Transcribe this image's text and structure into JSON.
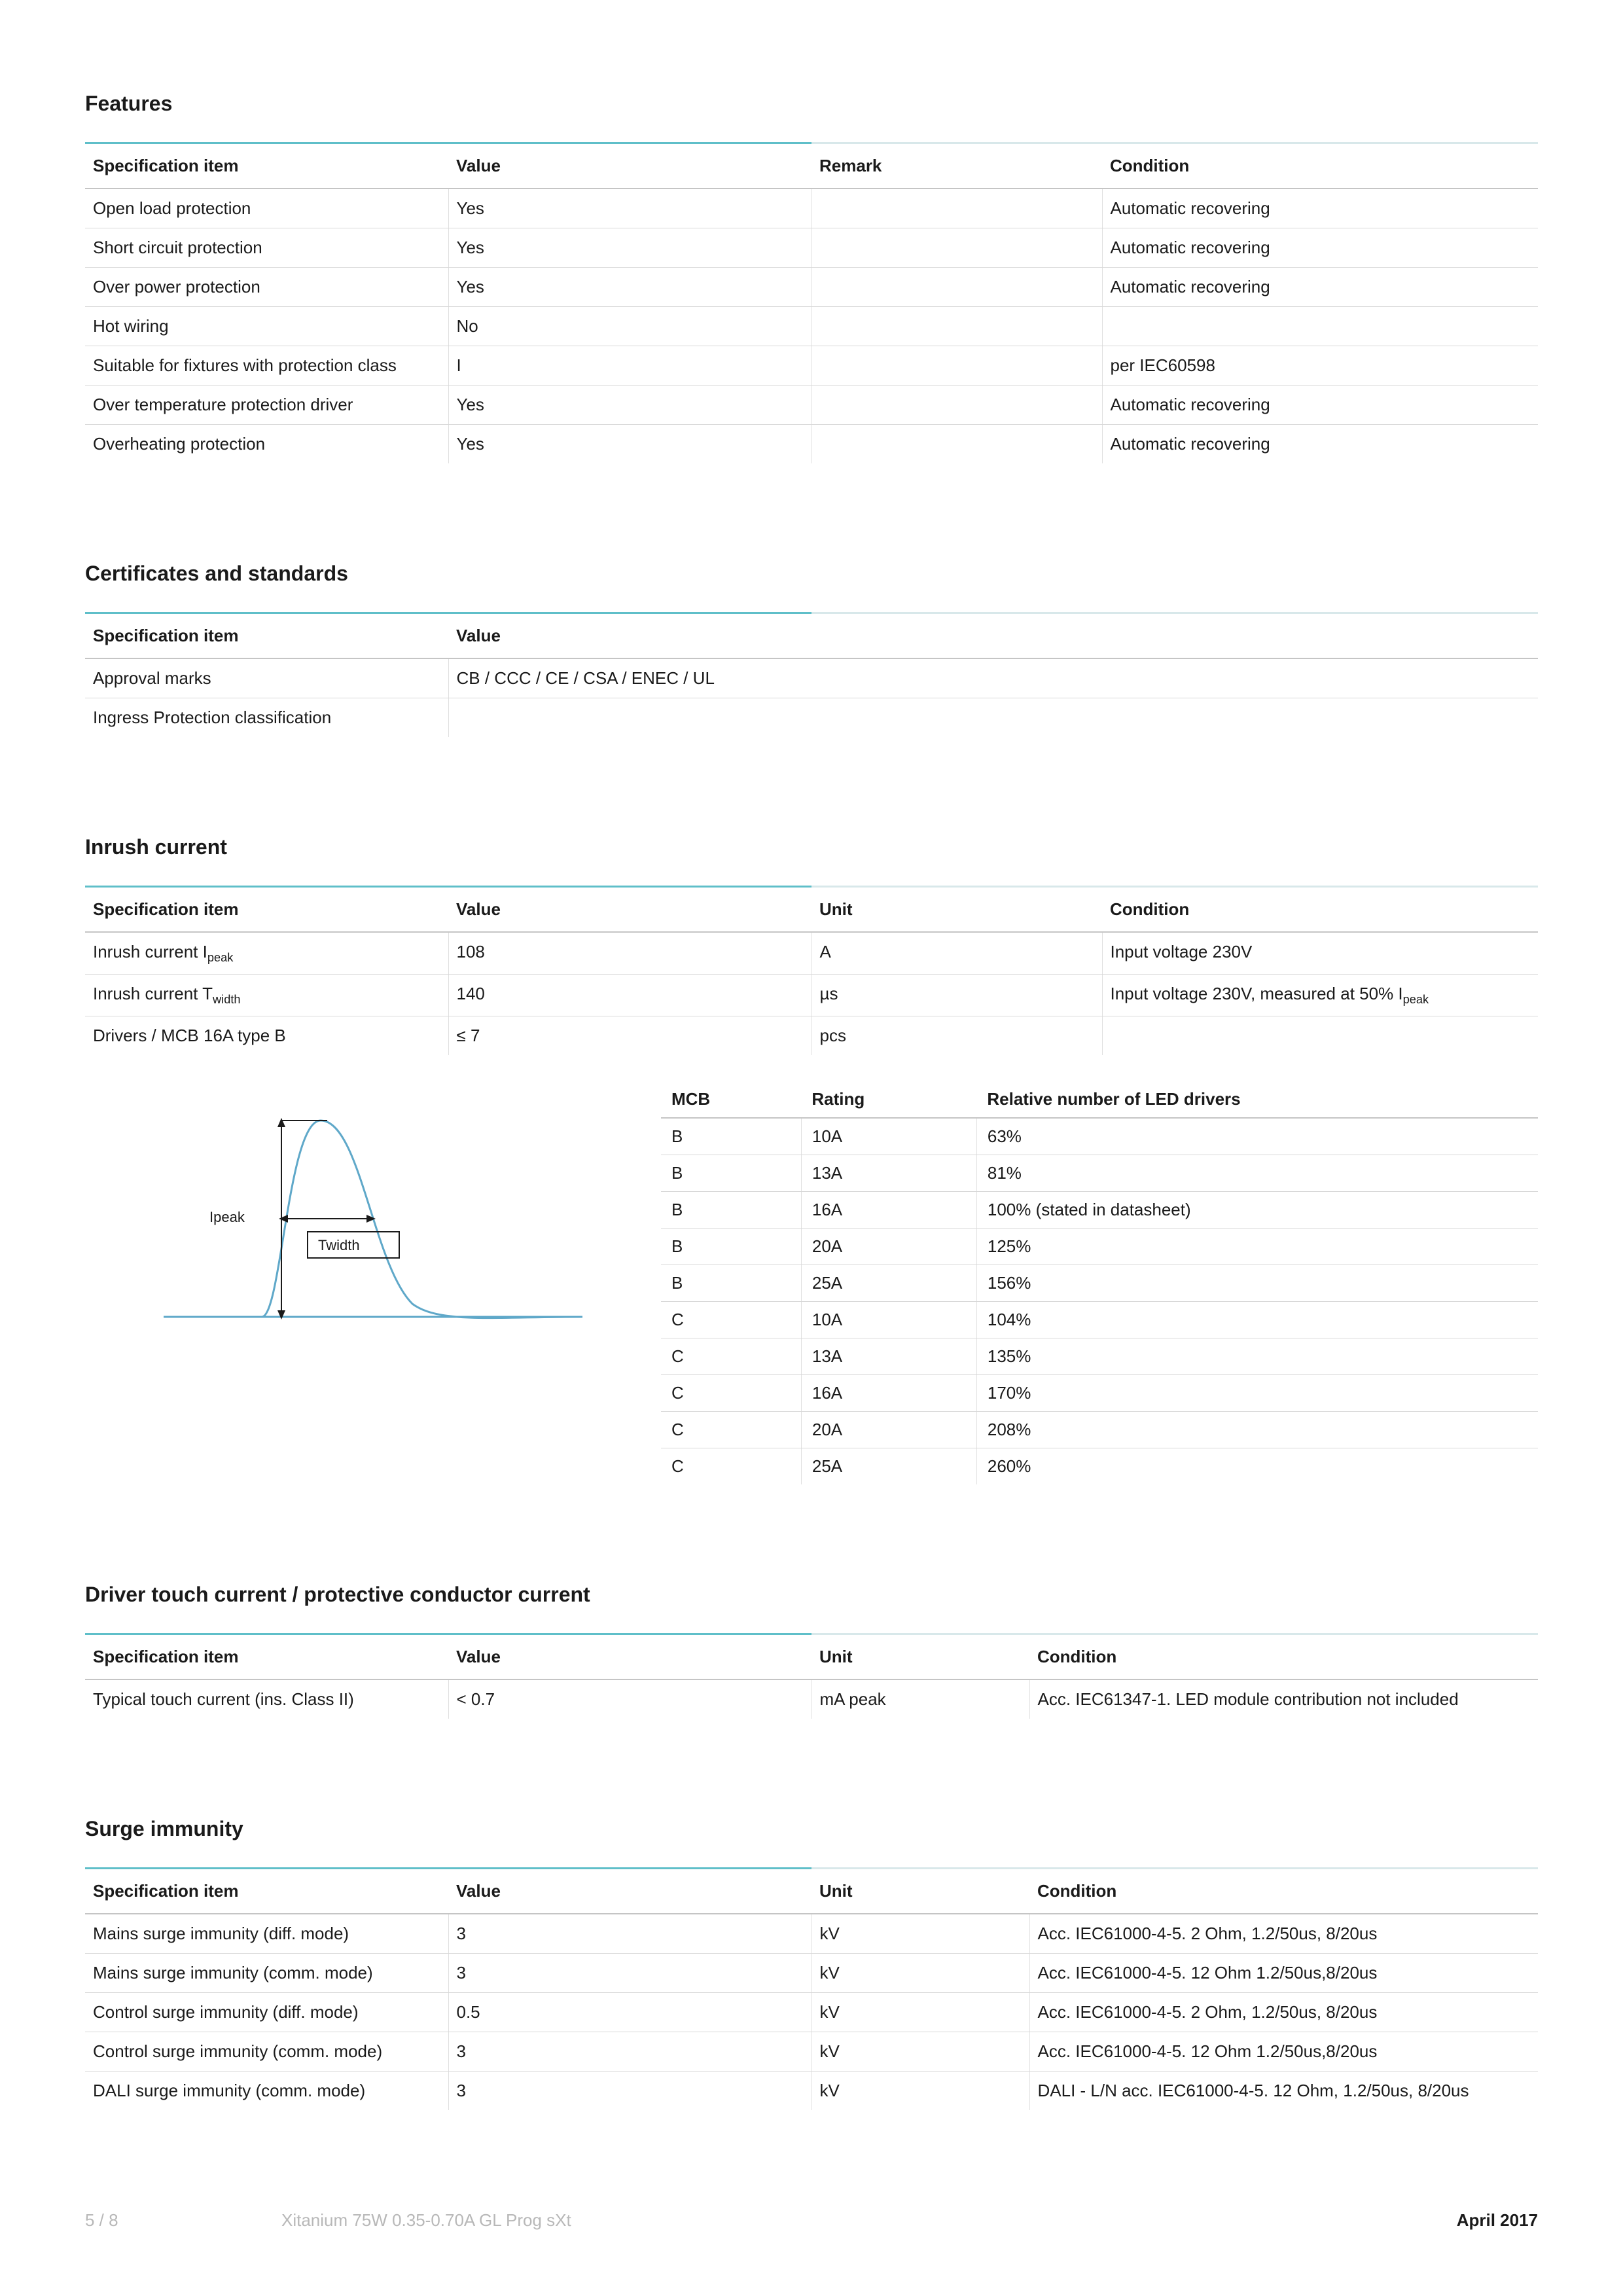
{
  "sections": {
    "features": {
      "title": "Features",
      "columns": [
        "Specification item",
        "Value",
        "Remark",
        "Condition"
      ],
      "col_widths": [
        "25%",
        "25%",
        "20%",
        "30%"
      ],
      "rows": [
        [
          "Open load protection",
          "Yes",
          "",
          "Automatic recovering"
        ],
        [
          "Short circuit protection",
          "Yes",
          "",
          "Automatic recovering"
        ],
        [
          "Over power protection",
          "Yes",
          "",
          "Automatic recovering"
        ],
        [
          "Hot wiring",
          "No",
          "",
          ""
        ],
        [
          "Suitable for fixtures with protection class",
          "I",
          "",
          "per IEC60598"
        ],
        [
          "Over temperature protection driver",
          "Yes",
          "",
          "Automatic recovering"
        ],
        [
          "Overheating protection",
          "Yes",
          "",
          "Automatic recovering"
        ]
      ]
    },
    "certificates": {
      "title": "Certificates and standards",
      "columns": [
        "Specification item",
        "Value"
      ],
      "col_widths": [
        "25%",
        "75%"
      ],
      "rows": [
        [
          "Approval marks",
          "CB / CCC / CE / CSA / ENEC / UL"
        ],
        [
          "Ingress Protection classification",
          ""
        ]
      ]
    },
    "inrush": {
      "title": "Inrush current",
      "columns": [
        "Specification item",
        "Value",
        "Unit",
        "Condition"
      ],
      "col_widths": [
        "25%",
        "25%",
        "20%",
        "30%"
      ],
      "rows": [
        [
          "Inrush current I|peak",
          "108",
          "A",
          "Input voltage 230V"
        ],
        [
          "Inrush current T|width",
          "140",
          "µs",
          "Input voltage 230V, measured at 50% I|peak"
        ],
        [
          "Drivers / MCB 16A type B",
          "≤ 7",
          "pcs",
          ""
        ]
      ],
      "graph": {
        "stroke_color": "#5fa8c9",
        "line_color": "#1a1a1a",
        "ipeak_label": "Ipeak",
        "twidth_label": "Twidth"
      },
      "mcb_table": {
        "columns": [
          "MCB",
          "Rating",
          "Relative number of LED drivers"
        ],
        "col_widths": [
          "16%",
          "20%",
          "64%"
        ],
        "rows": [
          [
            "B",
            "10A",
            "63%"
          ],
          [
            "B",
            "13A",
            "81%"
          ],
          [
            "B",
            "16A",
            "100% (stated in datasheet)"
          ],
          [
            "B",
            "20A",
            "125%"
          ],
          [
            "B",
            "25A",
            "156%"
          ],
          [
            "C",
            "10A",
            "104%"
          ],
          [
            "C",
            "13A",
            "135%"
          ],
          [
            "C",
            "16A",
            "170%"
          ],
          [
            "C",
            "20A",
            "208%"
          ],
          [
            "C",
            "25A",
            "260%"
          ]
        ]
      }
    },
    "touch_current": {
      "title": "Driver touch current / protective conductor current",
      "columns": [
        "Specification item",
        "Value",
        "Unit",
        "Condition"
      ],
      "col_widths": [
        "25%",
        "25%",
        "15%",
        "35%"
      ],
      "rows": [
        [
          "Typical touch current (ins. Class II)",
          "< 0.7",
          "mA peak",
          "Acc. IEC61347-1. LED module contribution not included"
        ]
      ]
    },
    "surge": {
      "title": "Surge immunity",
      "columns": [
        "Specification item",
        "Value",
        "Unit",
        "Condition"
      ],
      "col_widths": [
        "25%",
        "25%",
        "15%",
        "35%"
      ],
      "rows": [
        [
          "Mains surge immunity (diff. mode)",
          "3",
          "kV",
          "Acc. IEC61000-4-5. 2 Ohm, 1.2/50us, 8/20us"
        ],
        [
          "Mains surge immunity (comm. mode)",
          "3",
          "kV",
          "Acc. IEC61000-4-5. 12 Ohm 1.2/50us,8/20us"
        ],
        [
          "Control surge immunity (diff. mode)",
          "0.5",
          "kV",
          "Acc. IEC61000-4-5. 2 Ohm, 1.2/50us, 8/20us"
        ],
        [
          "Control surge immunity (comm. mode)",
          "3",
          "kV",
          "Acc. IEC61000-4-5. 12 Ohm 1.2/50us,8/20us"
        ],
        [
          "DALI surge immunity (comm. mode)",
          "3",
          "kV",
          "DALI - L/N acc. IEC61000-4-5. 12 Ohm, 1.2/50us, 8/20us"
        ]
      ]
    }
  },
  "footer": {
    "page": "5 / 8",
    "product": "Xitanium 75W 0.35-0.70A GL Prog sXt",
    "date": "April 2017"
  },
  "colors": {
    "underline_left": "#5fbfc9",
    "underline_right": "#d8e8ea",
    "border": "#d8d8d8",
    "header_border": "#c5c5c5",
    "text": "#1a1a1a",
    "footer_muted": "#b8b8b8"
  }
}
